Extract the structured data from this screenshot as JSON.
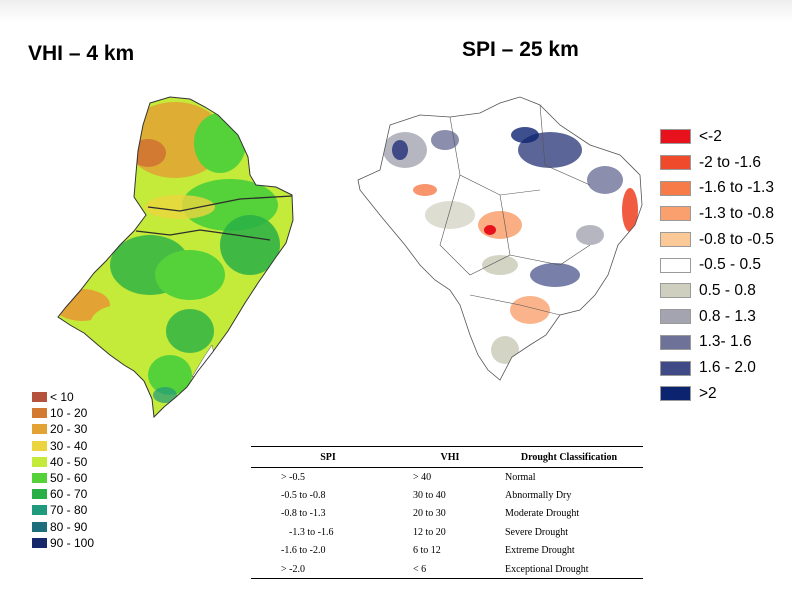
{
  "titles": {
    "vhi": "VHI – 4 km",
    "spi": "SPI – 25 km"
  },
  "vhi_legend": [
    {
      "label": "< 10",
      "color": "#b5523b"
    },
    {
      "label": "10 - 20",
      "color": "#d27932"
    },
    {
      "label": "20 - 30",
      "color": "#e3a234"
    },
    {
      "label": "30 - 40",
      "color": "#ecd43e"
    },
    {
      "label": "40 - 50",
      "color": "#c4ea3a"
    },
    {
      "label": "50 - 60",
      "color": "#55d23a"
    },
    {
      "label": "60 - 70",
      "color": "#28b046"
    },
    {
      "label": "70 - 80",
      "color": "#1f9a7a"
    },
    {
      "label": "80 - 90",
      "color": "#1c6e7c"
    },
    {
      "label": "90 - 100",
      "color": "#16286a"
    }
  ],
  "spi_legend": [
    {
      "label": "<-2",
      "color": "#e8121d"
    },
    {
      "label": "-2 to -1.6",
      "color": "#ef4a2c"
    },
    {
      "label": "-1.6 to -1.3",
      "color": "#f67b48"
    },
    {
      "label": "-1.3 to -0.8",
      "color": "#f9a06e"
    },
    {
      "label": "-0.8 to -0.5",
      "color": "#fbc898"
    },
    {
      "label": "-0.5 - 0.5",
      "color": "#ffffff"
    },
    {
      "label": "0.5 - 0.8",
      "color": "#cfcfbf"
    },
    {
      "label": "0.8 - 1.3",
      "color": "#a4a4b0"
    },
    {
      "label": "1.3- 1.6",
      "color": "#6e7299"
    },
    {
      "label": "1.6 - 2.0",
      "color": "#3f4a86"
    },
    {
      "label": ">2",
      "color": "#0c2470"
    }
  ],
  "table": {
    "headers": [
      "SPI",
      "VHI",
      "Drought Classification"
    ],
    "rows": [
      [
        "> -0.5",
        "> 40",
        "Normal"
      ],
      [
        "-0.5 to -0.8",
        "30 to 40",
        "Abnormally Dry"
      ],
      [
        "-0.8 to -1.3",
        "20 to 30",
        "Moderate Drought"
      ],
      [
        "-1.3 to -1.6",
        "12 to 20",
        "Severe Drought"
      ],
      [
        "-1.6 to -2.0",
        "6 to 12",
        "Extreme Drought"
      ],
      [
        "> -2.0",
        "< 6",
        "Exceptional Drought"
      ]
    ]
  }
}
